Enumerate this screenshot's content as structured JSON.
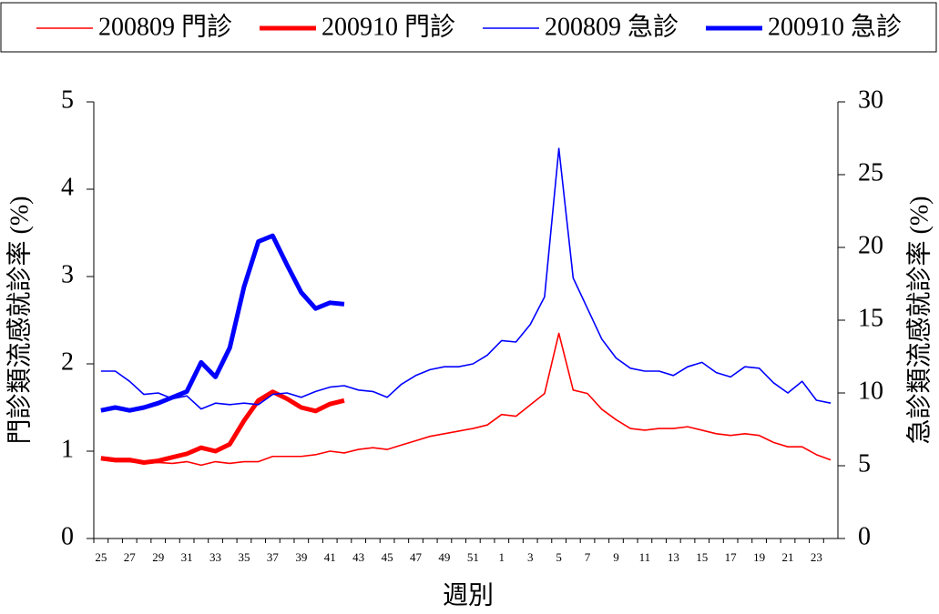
{
  "chart_data": {
    "type": "line",
    "xlabel": "週別",
    "ylabel": "門診類流感就診率 (%)",
    "y2label": "急診類流感就診率 (%)",
    "categories": [
      "25",
      null,
      "27",
      null,
      "29",
      null,
      "31",
      null,
      "33",
      null,
      "35",
      null,
      "37",
      null,
      "39",
      null,
      "41",
      null,
      "43",
      null,
      "45",
      null,
      "47",
      null,
      "49",
      null,
      "51",
      null,
      "1",
      null,
      "3",
      null,
      "5",
      null,
      "7",
      null,
      "9",
      null,
      "11",
      null,
      "13",
      null,
      "15",
      null,
      "17",
      null,
      "19",
      null,
      "21",
      null,
      "23",
      null
    ],
    "ylim": [
      0,
      5
    ],
    "yticks": [
      0,
      1,
      2,
      3,
      4,
      5
    ],
    "y2lim": [
      0,
      30
    ],
    "y2ticks": [
      0,
      5,
      10,
      15,
      20,
      25,
      30
    ],
    "legend": "top",
    "series": [
      {
        "name": "200809 門診",
        "color": "#ff0000",
        "linestyle": "thin",
        "values": [
          0.9,
          0.88,
          0.88,
          0.86,
          0.87,
          0.86,
          0.88,
          0.84,
          0.88,
          0.86,
          0.88,
          0.88,
          0.94,
          0.94,
          0.94,
          0.96,
          1.0,
          0.98,
          1.02,
          1.04,
          1.02,
          1.07,
          1.12,
          1.17,
          1.2,
          1.23,
          1.26,
          1.3,
          1.42,
          1.4,
          1.53,
          1.66,
          2.35,
          1.7,
          1.66,
          1.48,
          1.36,
          1.26,
          1.24,
          1.26,
          1.26,
          1.28,
          1.24,
          1.2,
          1.18,
          1.2,
          1.18,
          1.1,
          1.05,
          1.05,
          0.96,
          0.9
        ]
      },
      {
        "name": "200910 門診",
        "color": "#ff0000",
        "linestyle": "bold",
        "values": [
          0.92,
          0.9,
          0.9,
          0.87,
          0.89,
          0.93,
          0.97,
          1.04,
          1.0,
          1.08,
          1.35,
          1.58,
          1.68,
          1.6,
          1.5,
          1.46,
          1.54,
          1.58,
          null,
          null,
          null,
          null,
          null,
          null,
          null,
          null,
          null,
          null,
          null,
          null,
          null,
          null,
          null,
          null,
          null,
          null,
          null,
          null,
          null,
          null,
          null,
          null,
          null,
          null,
          null,
          null,
          null,
          null,
          null,
          null,
          null,
          null
        ]
      },
      {
        "name": "200809 急診",
        "color": "#0000ff",
        "linestyle": "thin",
        "axis": "y2",
        "values": [
          11.5,
          11.5,
          10.8,
          9.9,
          10.0,
          9.6,
          9.8,
          8.9,
          9.3,
          9.2,
          9.3,
          9.2,
          9.9,
          10.0,
          9.7,
          10.1,
          10.4,
          10.5,
          10.2,
          10.1,
          9.7,
          10.6,
          11.2,
          11.6,
          11.8,
          11.8,
          12.0,
          12.6,
          13.6,
          13.5,
          14.7,
          16.6,
          26.8,
          17.9,
          15.8,
          13.7,
          12.4,
          11.7,
          11.5,
          11.5,
          11.2,
          11.8,
          12.1,
          11.4,
          11.1,
          11.8,
          11.7,
          10.7,
          10.0,
          10.8,
          9.5,
          9.3
        ]
      },
      {
        "name": "200910 急診",
        "color": "#0000ff",
        "linestyle": "bold",
        "axis": "y2",
        "values": [
          8.8,
          9.0,
          8.8,
          9.0,
          9.3,
          9.7,
          10.1,
          12.1,
          11.1,
          13.1,
          17.3,
          20.4,
          20.8,
          18.8,
          16.9,
          15.8,
          16.2,
          16.1,
          null,
          null,
          null,
          null,
          null,
          null,
          null,
          null,
          null,
          null,
          null,
          null,
          null,
          null,
          null,
          null,
          null,
          null,
          null,
          null,
          null,
          null,
          null,
          null,
          null,
          null,
          null,
          null,
          null,
          null,
          null,
          null,
          null,
          null
        ]
      }
    ]
  }
}
